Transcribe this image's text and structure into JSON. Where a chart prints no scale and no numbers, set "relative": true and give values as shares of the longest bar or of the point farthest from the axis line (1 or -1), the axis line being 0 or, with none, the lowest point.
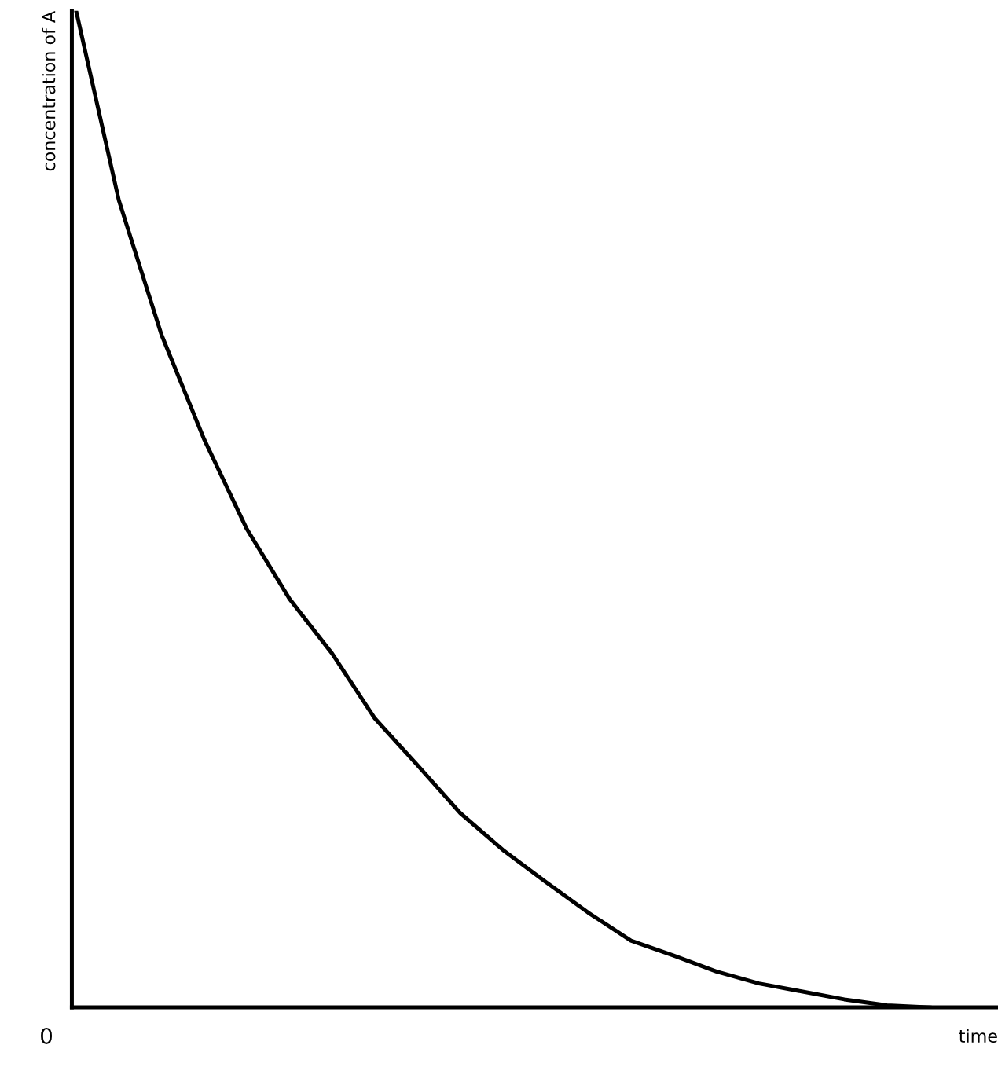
{
  "chart_data": {
    "type": "line",
    "relative": true,
    "xlabel": "time",
    "ylabel": "concentration of A",
    "annotations": [
      "0"
    ],
    "categories": [
      null,
      null,
      null,
      null,
      null,
      null,
      null,
      null,
      null,
      null,
      null,
      null,
      null,
      null,
      null,
      null,
      null,
      null,
      null,
      null,
      null
    ],
    "series": [
      {
        "color": "#000000",
        "values": [
          1.0,
          0.81,
          0.675,
          0.57,
          0.48,
          0.41,
          0.355,
          0.29,
          0.243,
          0.195,
          0.158,
          0.126,
          0.095,
          0.067,
          0.052,
          0.036,
          0.024,
          0.016,
          0.008,
          0.002,
          0
        ]
      }
    ],
    "legend": false,
    "marker": "none",
    "line_style": "solid"
  }
}
